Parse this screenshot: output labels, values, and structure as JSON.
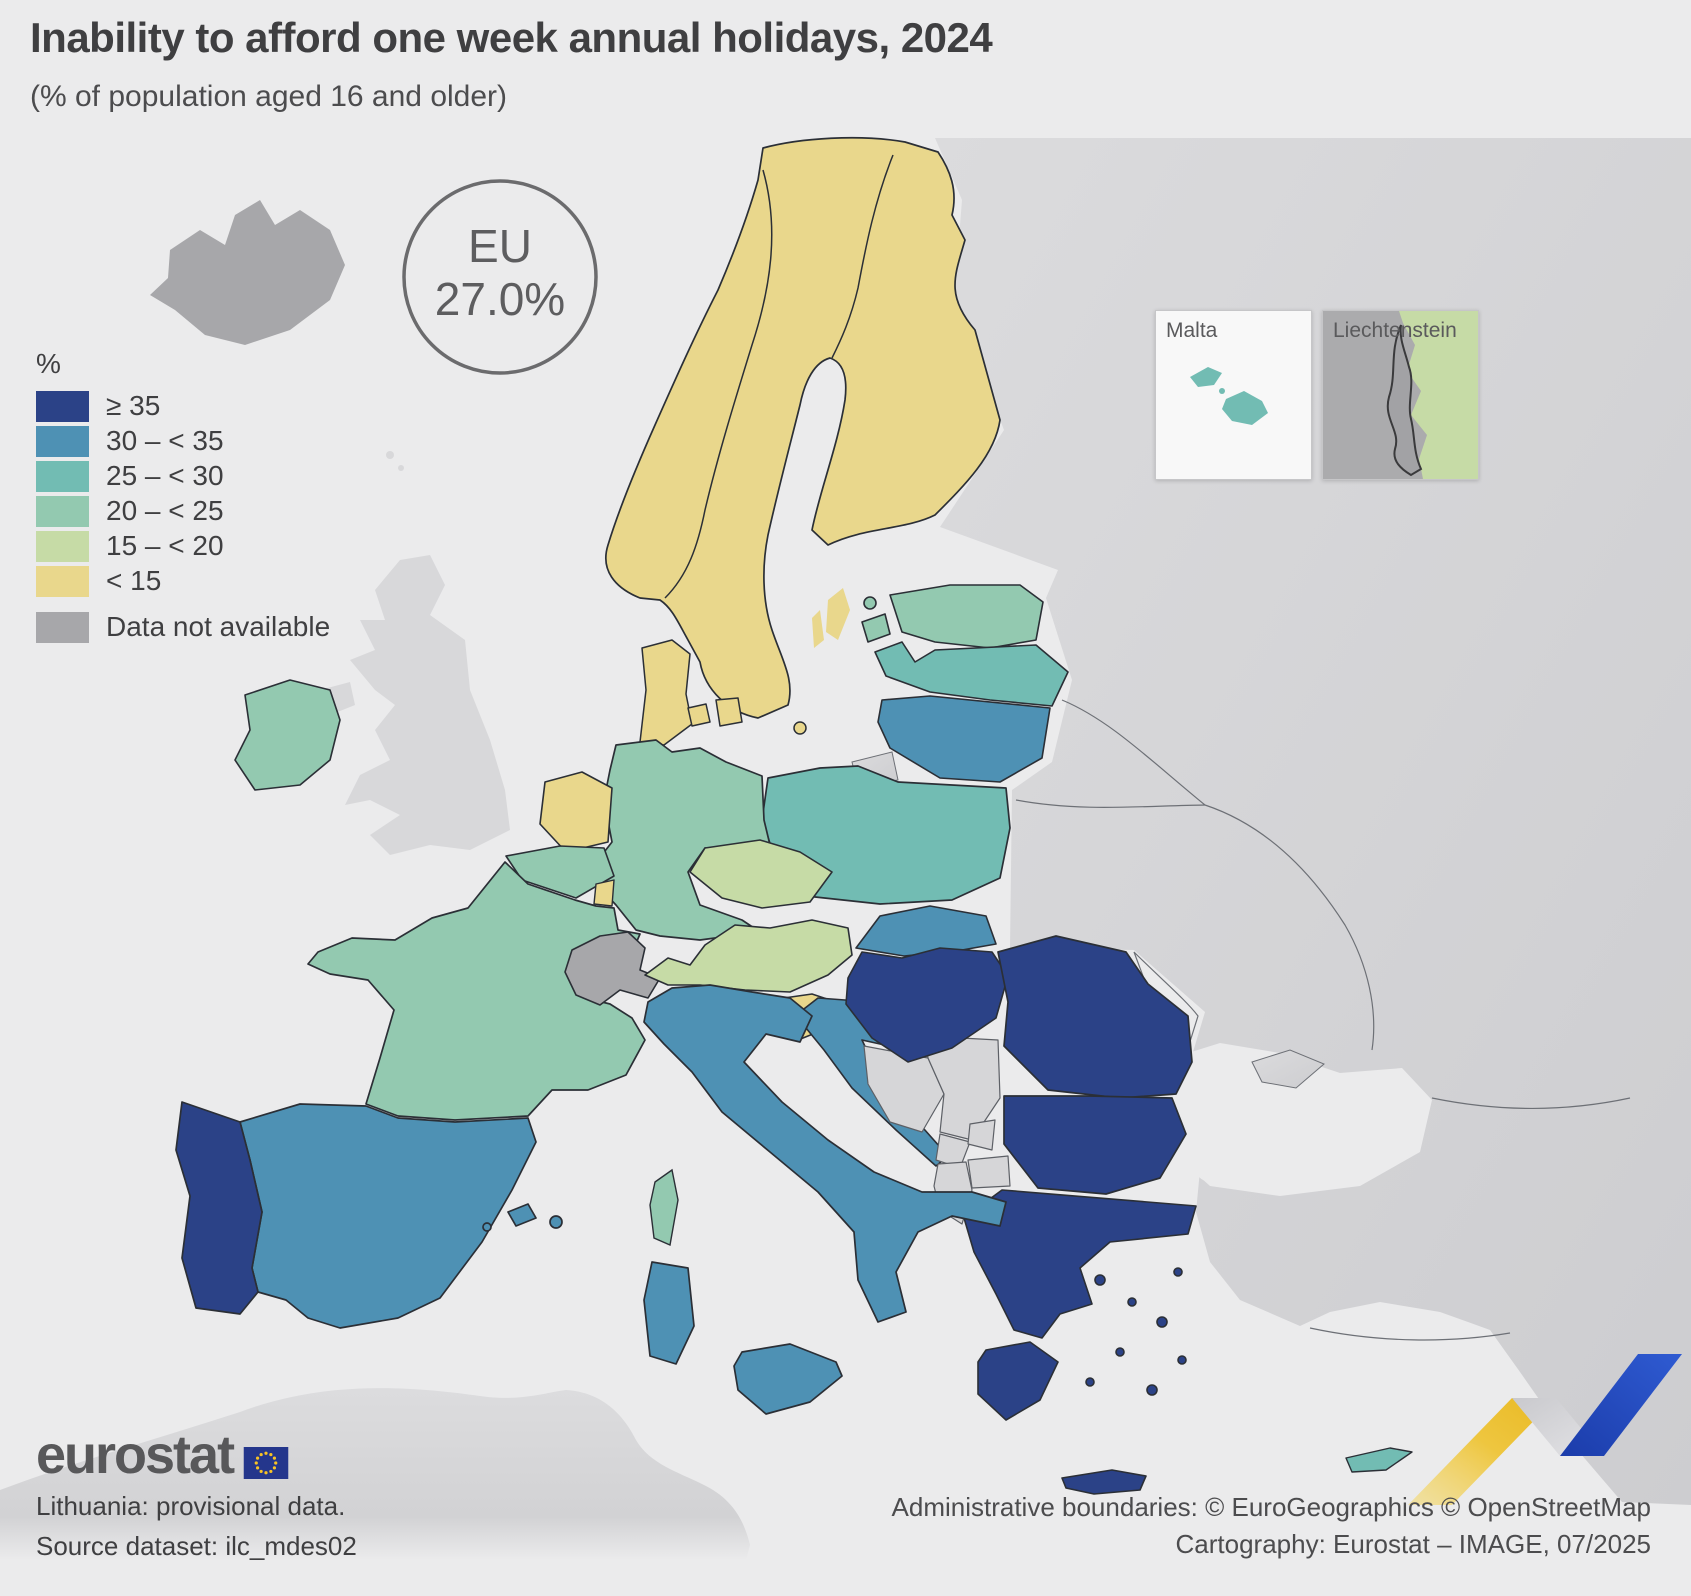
{
  "title": "Inability to afford one week annual holidays, 2024",
  "subtitle": "(% of population aged 16 and older)",
  "eu_badge": {
    "label": "EU",
    "value": "27.0%"
  },
  "legend": {
    "unit_label": "%",
    "classes": [
      {
        "id": "gte35",
        "label": "≥ 35",
        "color": "#2b4287"
      },
      {
        "id": "c30",
        "label": "30 – < 35",
        "color": "#4e91b4"
      },
      {
        "id": "c25",
        "label": "25 – < 30",
        "color": "#72bcb3"
      },
      {
        "id": "c20",
        "label": "20 – < 25",
        "color": "#93c9b0"
      },
      {
        "id": "c15",
        "label": "15 – < 20",
        "color": "#c6dba6"
      },
      {
        "id": "lt15",
        "label": "< 15",
        "color": "#e9d78c"
      }
    ],
    "no_data": {
      "id": "nodata",
      "label": "Data not available",
      "color": "#a7a7aa"
    }
  },
  "insets": {
    "malta": {
      "label": "Malta"
    },
    "liechtenstein": {
      "label": "Liechtenstein"
    }
  },
  "footer": {
    "logo_text": "eurostat",
    "notes": [
      "Lithuania: provisional data.",
      "Source dataset: ilc_mdes02"
    ],
    "credits": [
      "Administrative boundaries: © EuroGeographics © OpenStreetMap",
      "Cartography: Eurostat – IMAGE, 07/2025"
    ]
  },
  "chart_data": {
    "type": "choropleth_map",
    "title": "Inability to afford one week annual holidays, 2024",
    "unit": "% of population aged 16 and older",
    "year": 2024,
    "eu_value": 27.0,
    "class_breaks": [
      "≥ 35",
      "30 – < 35",
      "25 – < 30",
      "20 – < 25",
      "15 – < 20",
      "< 15",
      "Data not available"
    ],
    "countries": {
      "Portugal": "gte35",
      "Hungary": "gte35",
      "Romania": "gte35",
      "Bulgaria": "gte35",
      "Greece": "gte35",
      "Spain": "c30",
      "Italy": "c30",
      "Croatia": "c30",
      "Slovakia": "c30",
      "Lithuania": "c30",
      "Poland": "c25",
      "Latvia": "c25",
      "Cyprus": "c25",
      "Malta": "c25",
      "France": "c20",
      "Germany": "c20",
      "Belgium": "c20",
      "Ireland": "c20",
      "Estonia": "c20",
      "Czechia": "c15",
      "Austria": "c15",
      "Netherlands": "lt15",
      "Luxembourg": "lt15",
      "Denmark": "lt15",
      "Sweden": "lt15",
      "Norway": "lt15",
      "Finland": "lt15",
      "Slovenia": "lt15",
      "Switzerland": "nodata",
      "Iceland": "nodata",
      "Liechtenstein": "nodata"
    },
    "non_eu_fill": "#d6d6d8",
    "sea_fill": "#ebebec"
  }
}
